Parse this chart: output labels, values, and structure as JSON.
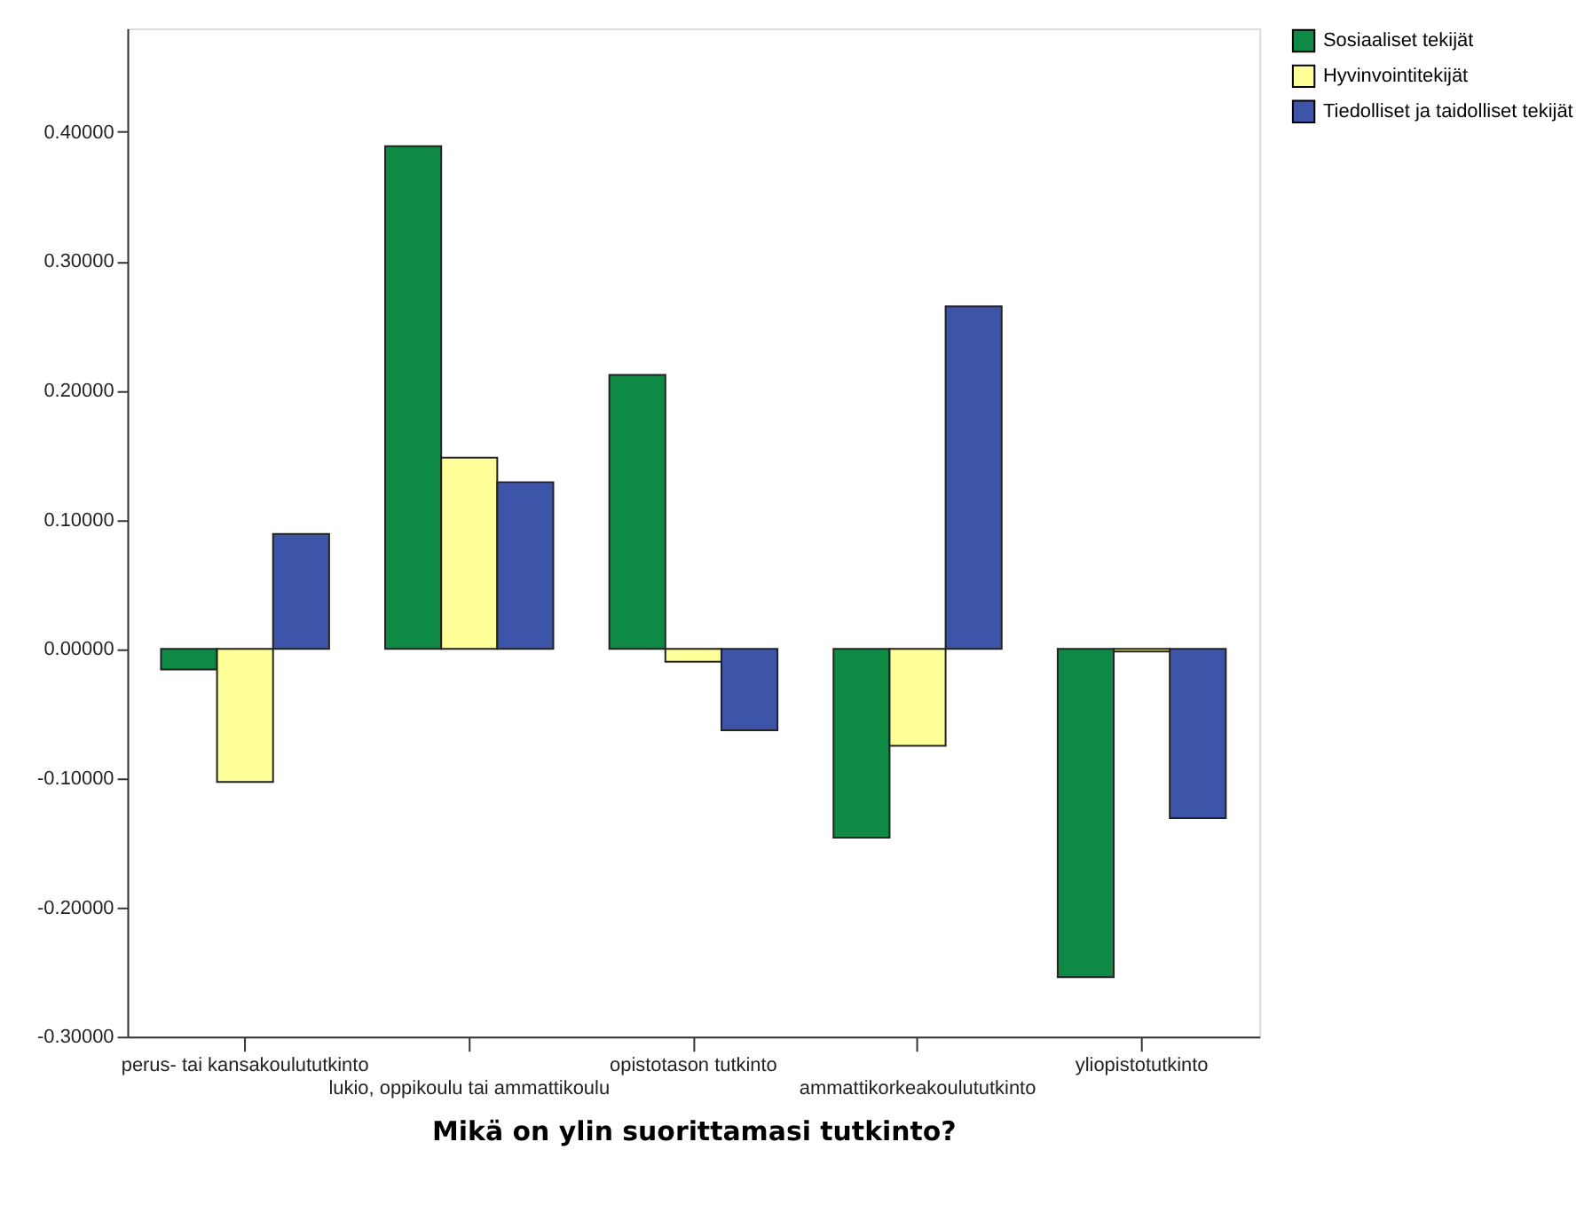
{
  "chart_data": {
    "type": "bar",
    "xlabel": "Mikä on ylin suorittamasi tutkinto?",
    "categories": [
      "perus- tai kansakoulututkinto",
      "lukio, oppikoulu tai ammattikoulu",
      "opistotason tutkinto",
      "ammattikorkeakoulututkinto",
      "yliopistotutkinto"
    ],
    "series": [
      {
        "name": "Sosiaaliset tekijät",
        "color": "#0f8a45",
        "values": [
          -0.016,
          0.389,
          0.212,
          -0.146,
          -0.254
        ]
      },
      {
        "name": "Hyvinvointitekijät",
        "color": "#ffff99",
        "values": [
          -0.103,
          0.148,
          -0.01,
          -0.075,
          -0.002
        ]
      },
      {
        "name": "Tiedolliset ja taidolliset tekijät",
        "color": "#3c55a9",
        "values": [
          0.089,
          0.129,
          -0.063,
          0.265,
          -0.131
        ]
      }
    ],
    "ylim": [
      -0.3,
      0.48
    ],
    "yticks": [
      {
        "value": -0.3,
        "label": "-0.30000"
      },
      {
        "value": -0.2,
        "label": "-0.20000"
      },
      {
        "value": -0.1,
        "label": "-0.10000"
      },
      {
        "value": 0,
        "label": "0.00000"
      },
      {
        "value": 0.1,
        "label": "0.10000"
      },
      {
        "value": 0.2,
        "label": "0.20000"
      },
      {
        "value": 0.3,
        "label": "0.30000"
      },
      {
        "value": 0.4,
        "label": "0.40000"
      }
    ],
    "grid": false,
    "legend": "top right"
  }
}
